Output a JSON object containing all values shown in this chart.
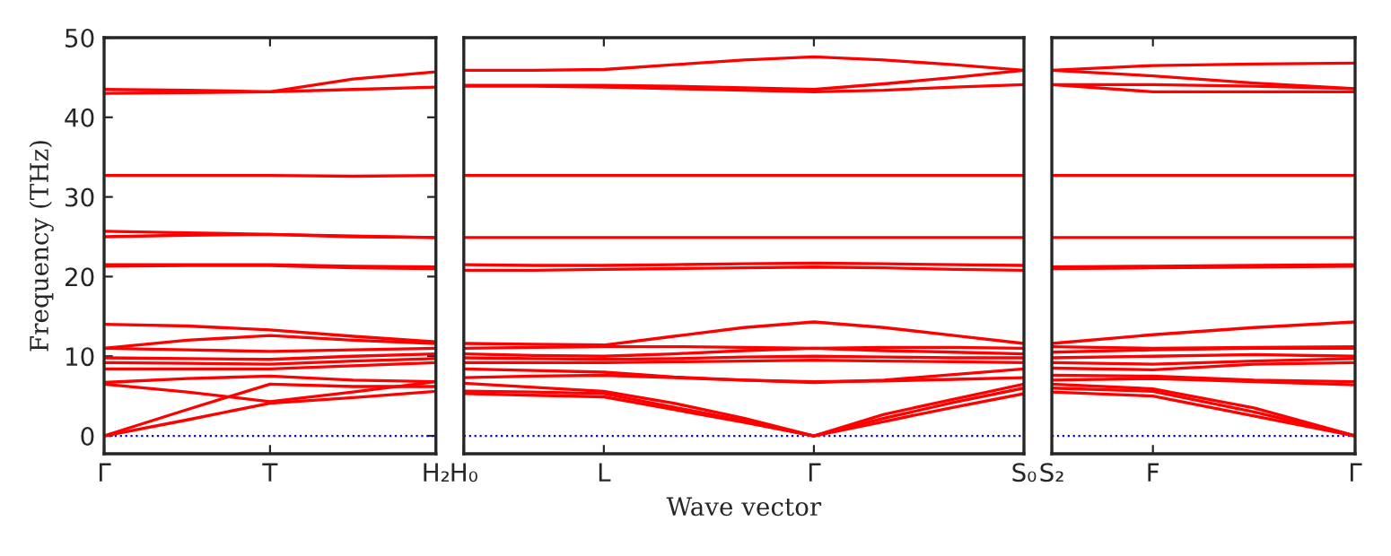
{
  "chart_data": [
    {
      "type": "line",
      "ylabel": "Frequency (THz)",
      "categories": [
        "Γ",
        null,
        "T",
        null,
        "H₂"
      ],
      "ylim": [
        -2.25,
        50
      ],
      "yticks": [
        0,
        10,
        20,
        30,
        40,
        50
      ],
      "ref_lines": [
        {
          "axis": "y",
          "value": 0,
          "color": "#0000ff",
          "line_style": "dotted"
        }
      ],
      "series": [
        {
          "color": "#ff0000",
          "values": [
            43.5,
            43.4,
            43.2,
            44.8,
            45.7
          ]
        },
        {
          "color": "#ff0000",
          "values": [
            43.0,
            43.1,
            43.2,
            43.5,
            43.8
          ]
        },
        {
          "color": "#ff0000",
          "values": [
            32.7,
            32.7,
            32.7,
            32.6,
            32.7
          ]
        },
        {
          "color": "#ff0000",
          "values": [
            25.7,
            25.5,
            25.3,
            25.0,
            24.9
          ]
        },
        {
          "color": "#ff0000",
          "values": [
            25.0,
            25.2,
            25.3,
            25.1,
            24.9
          ]
        },
        {
          "color": "#ff0000",
          "values": [
            21.5,
            21.5,
            21.5,
            21.3,
            21.2
          ]
        },
        {
          "color": "#ff0000",
          "values": [
            21.3,
            21.4,
            21.4,
            21.1,
            21.0
          ]
        },
        {
          "color": "#ff0000",
          "values": [
            0,
            2.0,
            4.1,
            4.8,
            5.6
          ]
        },
        {
          "color": "#ff0000",
          "values": [
            0,
            3.3,
            6.5,
            6.2,
            6.2
          ]
        },
        {
          "color": "#ff0000",
          "values": [
            6.5,
            5.5,
            4.3,
            5.5,
            6.8
          ]
        },
        {
          "color": "#ff0000",
          "values": [
            6.7,
            7.2,
            7.5,
            7.0,
            6.8
          ]
        },
        {
          "color": "#ff0000",
          "values": [
            8.4,
            8.4,
            8.4,
            8.8,
            9.2
          ]
        },
        {
          "color": "#ff0000",
          "values": [
            9.2,
            9.1,
            9.0,
            9.4,
            9.7
          ]
        },
        {
          "color": "#ff0000",
          "values": [
            9.8,
            9.7,
            9.6,
            10.0,
            10.3
          ]
        },
        {
          "color": "#ff0000",
          "values": [
            11.0,
            10.8,
            10.6,
            10.8,
            11.0
          ]
        },
        {
          "color": "#ff0000",
          "values": [
            11.0,
            12.0,
            12.6,
            12.0,
            11.6
          ]
        },
        {
          "color": "#ff0000",
          "values": [
            14.0,
            13.8,
            13.3,
            12.5,
            11.8
          ]
        }
      ]
    },
    {
      "type": "line",
      "xlabel": "Wave vector",
      "tick_labels": "x",
      "categories": [
        "H₀",
        null,
        "L",
        null,
        null,
        "Γ",
        null,
        null,
        "S₀"
      ],
      "ylim": [
        -2.25,
        50
      ],
      "ref_lines": [
        {
          "axis": "y",
          "value": 0,
          "color": "#0000ff",
          "line_style": "dotted"
        }
      ],
      "series": [
        {
          "color": "#ff0000",
          "values": [
            45.9,
            45.9,
            46.0,
            46.6,
            47.2,
            47.6,
            47.2,
            46.6,
            45.9
          ]
        },
        {
          "color": "#ff0000",
          "values": [
            44.0,
            44.0,
            44.0,
            43.9,
            43.7,
            43.5,
            44.2,
            45.0,
            45.9
          ]
        },
        {
          "color": "#ff0000",
          "values": [
            43.9,
            43.9,
            43.8,
            43.6,
            43.4,
            43.2,
            43.4,
            43.8,
            44.1
          ]
        },
        {
          "color": "#ff0000",
          "values": [
            32.7,
            32.7,
            32.7,
            32.7,
            32.7,
            32.7,
            32.7,
            32.7,
            32.7
          ]
        },
        {
          "color": "#ff0000",
          "values": [
            24.9,
            24.9,
            24.9,
            24.9,
            24.9,
            24.9,
            24.9,
            24.9,
            24.9
          ]
        },
        {
          "color": "#ff0000",
          "values": [
            21.5,
            21.4,
            21.4,
            21.5,
            21.6,
            21.7,
            21.6,
            21.5,
            21.4
          ]
        },
        {
          "color": "#ff0000",
          "values": [
            20.8,
            20.8,
            20.9,
            21.0,
            21.1,
            21.2,
            21.1,
            20.9,
            20.8
          ]
        },
        {
          "color": "#ff0000",
          "values": [
            5.3,
            5.1,
            4.9,
            3.3,
            1.7,
            0,
            1.8,
            3.6,
            5.3
          ]
        },
        {
          "color": "#ff0000",
          "values": [
            5.6,
            5.5,
            5.3,
            3.6,
            1.9,
            0,
            2.2,
            4.2,
            6.0
          ]
        },
        {
          "color": "#ff0000",
          "values": [
            6.6,
            6.1,
            5.6,
            4.1,
            2.2,
            0,
            2.7,
            4.6,
            6.5
          ]
        },
        {
          "color": "#ff0000",
          "values": [
            7.3,
            7.5,
            7.6,
            7.3,
            7.0,
            6.8,
            6.9,
            7.1,
            7.3
          ]
        },
        {
          "color": "#ff0000",
          "values": [
            8.4,
            8.2,
            8.0,
            7.4,
            7.0,
            6.7,
            7.0,
            7.7,
            8.4
          ]
        },
        {
          "color": "#ff0000",
          "values": [
            9.2,
            9.2,
            9.2,
            9.3,
            9.4,
            9.5,
            9.4,
            9.3,
            9.2
          ]
        },
        {
          "color": "#ff0000",
          "values": [
            9.8,
            9.7,
            9.6,
            9.7,
            9.9,
            10.0,
            9.9,
            9.8,
            9.8
          ]
        },
        {
          "color": "#ff0000",
          "values": [
            10.3,
            10.1,
            10.0,
            10.3,
            10.7,
            11.0,
            10.7,
            10.5,
            10.3
          ]
        },
        {
          "color": "#ff0000",
          "values": [
            11.0,
            11.1,
            11.2,
            11.2,
            11.1,
            11.0,
            11.1,
            11.1,
            11.0
          ]
        },
        {
          "color": "#ff0000",
          "values": [
            11.6,
            11.5,
            11.4,
            12.5,
            13.6,
            14.3,
            13.6,
            12.6,
            11.6
          ]
        }
      ]
    },
    {
      "type": "line",
      "tick_labels": "x",
      "categories": [
        "S₂",
        "F",
        null,
        "Γ"
      ],
      "ylim": [
        -2.25,
        50
      ],
      "ref_lines": [
        {
          "axis": "y",
          "value": 0,
          "color": "#0000ff",
          "line_style": "dotted"
        }
      ],
      "series": [
        {
          "color": "#ff0000",
          "values": [
            45.9,
            46.5,
            46.7,
            46.8
          ]
        },
        {
          "color": "#ff0000",
          "values": [
            45.9,
            45.2,
            44.3,
            43.6
          ]
        },
        {
          "color": "#ff0000",
          "values": [
            44.1,
            44.1,
            43.9,
            43.6
          ]
        },
        {
          "color": "#ff0000",
          "values": [
            44.1,
            43.2,
            43.2,
            43.2
          ]
        },
        {
          "color": "#ff0000",
          "values": [
            32.7,
            32.7,
            32.7,
            32.7
          ]
        },
        {
          "color": "#ff0000",
          "values": [
            24.9,
            24.9,
            24.9,
            24.9
          ]
        },
        {
          "color": "#ff0000",
          "values": [
            21.2,
            21.3,
            21.4,
            21.5
          ]
        },
        {
          "color": "#ff0000",
          "values": [
            21.0,
            21.1,
            21.2,
            21.3
          ]
        },
        {
          "color": "#ff0000",
          "values": [
            6.0,
            5.6,
            3.0,
            0
          ]
        },
        {
          "color": "#ff0000",
          "values": [
            5.5,
            5.0,
            2.5,
            0
          ]
        },
        {
          "color": "#ff0000",
          "values": [
            6.5,
            5.9,
            3.5,
            0
          ]
        },
        {
          "color": "#ff0000",
          "values": [
            7.0,
            7.2,
            6.8,
            6.4
          ]
        },
        {
          "color": "#ff0000",
          "values": [
            7.6,
            7.5,
            7.0,
            6.8
          ]
        },
        {
          "color": "#ff0000",
          "values": [
            8.5,
            8.3,
            9.0,
            9.2
          ]
        },
        {
          "color": "#ff0000",
          "values": [
            9.2,
            9.0,
            9.4,
            9.7
          ]
        },
        {
          "color": "#ff0000",
          "values": [
            9.8,
            10.0,
            10.2,
            10.0
          ]
        },
        {
          "color": "#ff0000",
          "values": [
            10.5,
            10.8,
            11.0,
            11.0
          ]
        },
        {
          "color": "#ff0000",
          "values": [
            11.2,
            11.0,
            11.1,
            11.2
          ]
        },
        {
          "color": "#ff0000",
          "values": [
            11.6,
            12.7,
            13.6,
            14.3
          ]
        }
      ]
    }
  ]
}
